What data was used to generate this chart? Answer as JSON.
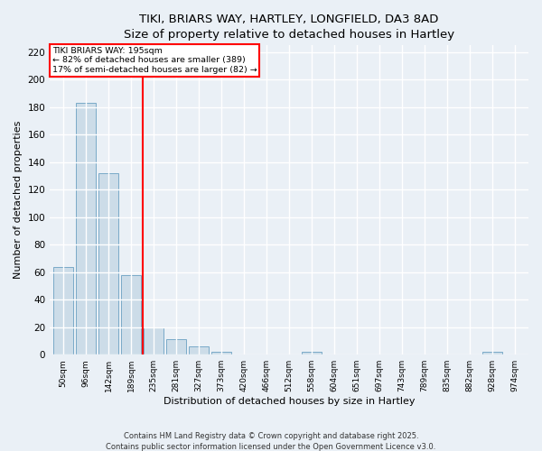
{
  "title1": "TIKI, BRIARS WAY, HARTLEY, LONGFIELD, DA3 8AD",
  "title2": "Size of property relative to detached houses in Hartley",
  "xlabel": "Distribution of detached houses by size in Hartley",
  "ylabel": "Number of detached properties",
  "categories": [
    "50sqm",
    "96sqm",
    "142sqm",
    "189sqm",
    "235sqm",
    "281sqm",
    "327sqm",
    "373sqm",
    "420sqm",
    "466sqm",
    "512sqm",
    "558sqm",
    "604sqm",
    "651sqm",
    "697sqm",
    "743sqm",
    "789sqm",
    "835sqm",
    "882sqm",
    "928sqm",
    "974sqm"
  ],
  "values": [
    64,
    183,
    132,
    58,
    20,
    11,
    6,
    2,
    0,
    0,
    0,
    2,
    0,
    0,
    0,
    0,
    0,
    0,
    0,
    2,
    0
  ],
  "bar_color": "#ccdce8",
  "bar_edge_color": "#7aaac8",
  "vline_color": "red",
  "annotation_line1": "TIKI BRIARS WAY: 195sqm",
  "annotation_line2": "← 82% of detached houses are smaller (389)",
  "annotation_line3": "17% of semi-detached houses are larger (82) →",
  "ylim": [
    0,
    225
  ],
  "yticks": [
    0,
    20,
    40,
    60,
    80,
    100,
    120,
    140,
    160,
    180,
    200,
    220
  ],
  "background_color": "#eaf0f6",
  "grid_color": "white",
  "footer1": "Contains HM Land Registry data © Crown copyright and database right 2025.",
  "footer2": "Contains public sector information licensed under the Open Government Licence v3.0."
}
